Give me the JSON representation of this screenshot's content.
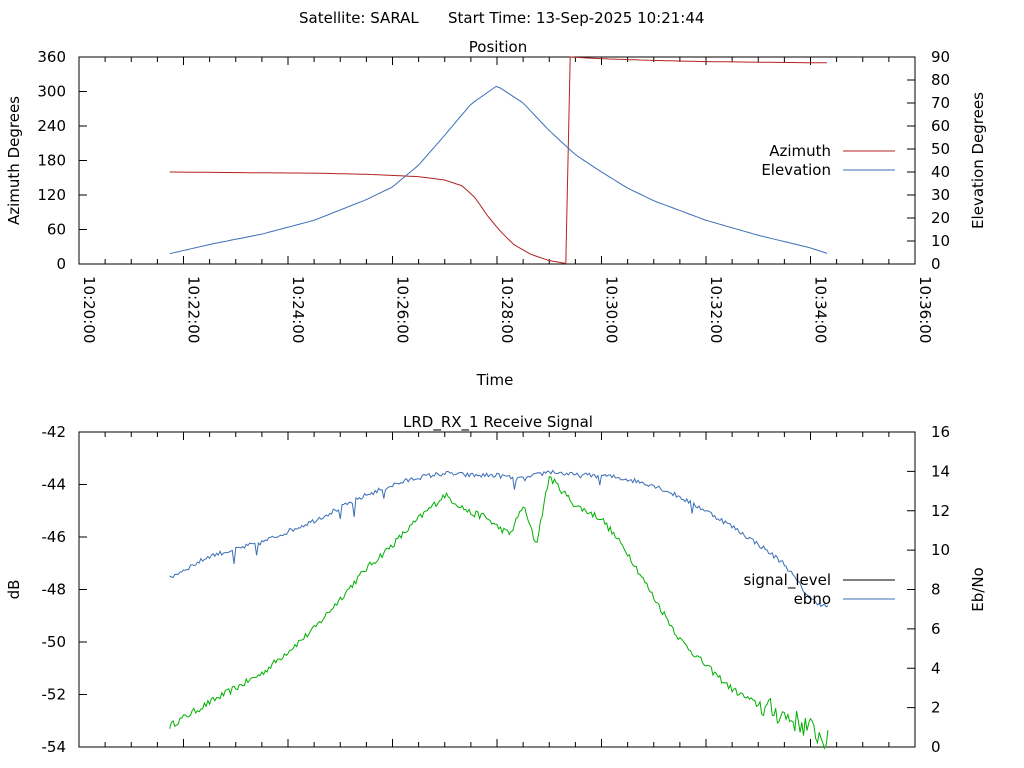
{
  "header": {
    "satellite": "Satellite: SARAL",
    "start_time": "Start Time: 13-Sep-2025 10:21:44"
  },
  "chart_data": [
    {
      "type": "line",
      "title": "Position",
      "xlabel": "Time",
      "ylabel": "Azimuth Degrees",
      "y2label": "Elevation Degrees",
      "xlim": [
        "10:20:00",
        "10:36:00"
      ],
      "ylim": [
        0,
        360
      ],
      "y2lim": [
        0,
        90
      ],
      "x_ticks": [
        "10:20:00",
        "10:22:00",
        "10:24:00",
        "10:26:00",
        "10:28:00",
        "10:30:00",
        "10:32:00",
        "10:34:00",
        "10:36:00"
      ],
      "y_ticks": [
        "0",
        "60",
        "120",
        "180",
        "240",
        "300",
        "360"
      ],
      "y2_ticks": [
        "0",
        "10",
        "20",
        "30",
        "40",
        "50",
        "60",
        "70",
        "80",
        "90"
      ],
      "legend_position": "right",
      "grid": false,
      "series": [
        {
          "name": "Azimuth",
          "axis": "left",
          "color": "#b22222",
          "x": [
            "10:21:44",
            "10:23:00",
            "10:24:30",
            "10:25:30",
            "10:26:30",
            "10:27:00",
            "10:27:20",
            "10:27:35",
            "10:27:50",
            "10:28:05",
            "10:28:20",
            "10:28:40",
            "10:29:00",
            "10:29:15",
            "10:29:23",
            "10:29:24",
            "10:30:00",
            "10:31:00",
            "10:32:00",
            "10:33:00",
            "10:34:00",
            "10:34:20"
          ],
          "values": [
            160,
            159,
            158,
            156,
            152,
            146,
            136,
            115,
            82,
            55,
            33,
            16,
            6,
            2,
            0,
            360,
            357,
            354,
            352,
            351,
            350,
            350
          ]
        },
        {
          "name": "Elevation",
          "axis": "right",
          "color": "#3b6fb6",
          "x": [
            "10:21:44",
            "10:22:30",
            "10:23:30",
            "10:24:30",
            "10:25:30",
            "10:26:00",
            "10:26:30",
            "10:27:00",
            "10:27:30",
            "10:28:00",
            "10:28:30",
            "10:29:00",
            "10:29:30",
            "10:30:00",
            "10:30:30",
            "10:31:00",
            "10:32:00",
            "10:33:00",
            "10:34:00",
            "10:34:20"
          ],
          "values": [
            4.5,
            8.5,
            13,
            19,
            28,
            33.5,
            43,
            56,
            69.5,
            77.5,
            70,
            58,
            47.5,
            40,
            33,
            27.5,
            19,
            12.5,
            7,
            4.5
          ]
        }
      ]
    },
    {
      "type": "line",
      "title": "LRD_RX_1 Receive Signal",
      "xlabel": "",
      "ylabel": "dB",
      "y2label": "Eb/No",
      "xlim": [
        "10:20:00",
        "10:36:00"
      ],
      "ylim": [
        -54,
        -42
      ],
      "y2lim": [
        0,
        16
      ],
      "y_ticks": [
        "-54",
        "-52",
        "-50",
        "-48",
        "-46",
        "-44",
        "-42"
      ],
      "y2_ticks": [
        "0",
        "2",
        "4",
        "6",
        "8",
        "10",
        "12",
        "14",
        "16"
      ],
      "legend_position": "right",
      "grid": false,
      "legend": [
        "signal_level",
        "ebno"
      ],
      "series": [
        {
          "name": "signal_level",
          "axis": "left",
          "color": "#00b000",
          "x": [
            "10:21:44",
            "10:22:30",
            "10:23:30",
            "10:24:30",
            "10:25:30",
            "10:26:00",
            "10:26:30",
            "10:27:00",
            "10:27:30",
            "10:27:45",
            "10:28:00",
            "10:28:15",
            "10:28:30",
            "10:28:45",
            "10:29:00",
            "10:29:30",
            "10:30:00",
            "10:30:30",
            "10:31:00",
            "10:31:30",
            "10:32:00",
            "10:32:30",
            "10:33:00",
            "10:33:30",
            "10:34:00",
            "10:34:20"
          ],
          "values": [
            -53.2,
            -52.3,
            -51.2,
            -49.5,
            -47.2,
            -46.3,
            -45.3,
            -44.4,
            -45.1,
            -45.2,
            -45.6,
            -45.9,
            -44.8,
            -46.3,
            -43.7,
            -44.8,
            -45.3,
            -46.6,
            -48.3,
            -49.9,
            -50.9,
            -51.8,
            -52.4,
            -52.8,
            -53.3,
            -53.8
          ]
        },
        {
          "name": "ebno",
          "axis": "right",
          "color": "#3b6fb6",
          "x": [
            "10:21:44",
            "10:22:30",
            "10:23:30",
            "10:24:30",
            "10:25:30",
            "10:26:00",
            "10:26:30",
            "10:27:00",
            "10:27:30",
            "10:28:00",
            "10:28:30",
            "10:29:00",
            "10:29:30",
            "10:30:00",
            "10:30:30",
            "10:31:00",
            "10:31:30",
            "10:32:00",
            "10:32:30",
            "10:33:00",
            "10:33:30",
            "10:34:00",
            "10:34:20"
          ],
          "values": [
            8.6,
            9.7,
            10.4,
            11.5,
            12.8,
            13.3,
            13.7,
            13.9,
            13.8,
            13.8,
            13.6,
            14.0,
            13.8,
            13.8,
            13.6,
            13.3,
            12.7,
            12.0,
            11.2,
            10.3,
            9.3,
            7.5,
            7.1
          ]
        }
      ]
    }
  ]
}
